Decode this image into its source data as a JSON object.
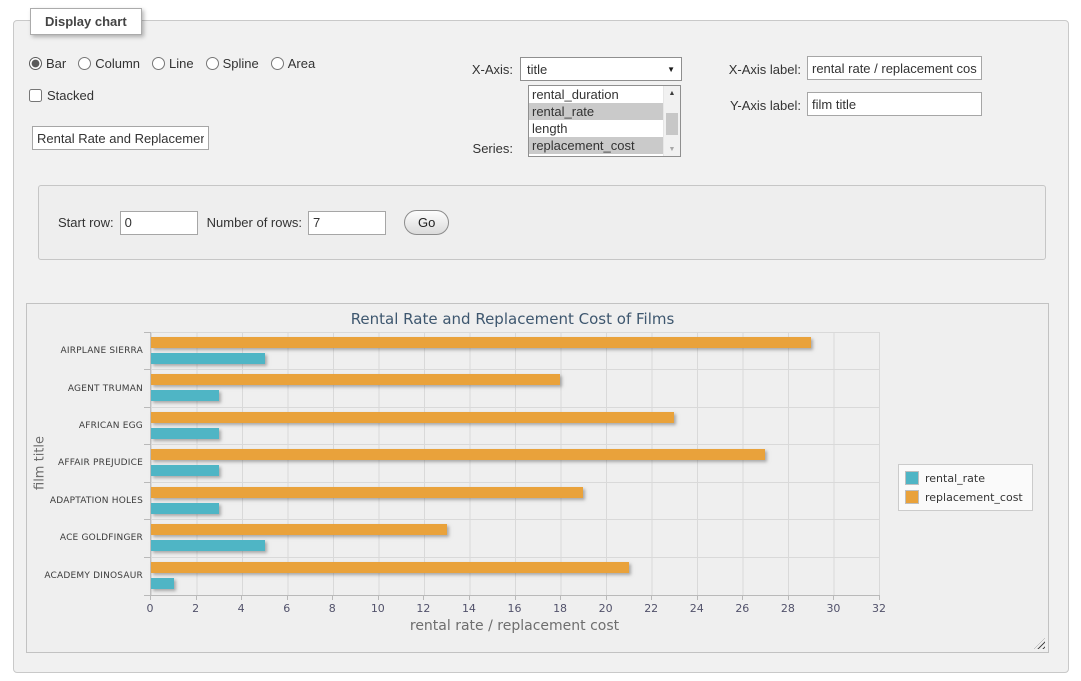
{
  "fieldset": {
    "legend": "Display chart"
  },
  "controls": {
    "chart_types": [
      "Bar",
      "Column",
      "Line",
      "Spline",
      "Area"
    ],
    "selected_chart_type": "Bar",
    "stacked_label": "Stacked",
    "stacked_checked": false,
    "chart_title_value": "Rental Rate and Replacement Cost of Films",
    "x_axis": {
      "label": "X-Axis:",
      "value": "title"
    },
    "series": {
      "label": "Series:",
      "options": [
        "rental_duration",
        "rental_rate",
        "length",
        "replacement_cost"
      ],
      "selected": [
        "rental_rate",
        "replacement_cost"
      ]
    },
    "x_axis_label": {
      "label": "X-Axis label:",
      "value": "rental rate / replacement cost"
    },
    "y_axis_label": {
      "label": "Y-Axis label:",
      "value": "film title"
    }
  },
  "rows_panel": {
    "start_row_label": "Start row:",
    "start_row_value": "0",
    "num_rows_label": "Number of rows:",
    "num_rows_value": "7",
    "go_label": "Go"
  },
  "icons": {
    "dropdown_arrow": "▼",
    "scroll_up_arrow": "▲",
    "scroll_down_arrow": "▼"
  },
  "chart_data": {
    "type": "bar",
    "orientation": "horizontal",
    "title": "Rental Rate and Replacement Cost of Films",
    "xlabel": "rental rate / replacement cost",
    "ylabel": "film title",
    "xlim": [
      0,
      32
    ],
    "xticks": [
      0,
      2,
      4,
      6,
      8,
      10,
      12,
      14,
      16,
      18,
      20,
      22,
      24,
      26,
      28,
      30,
      32
    ],
    "grid": true,
    "legend_position": "right",
    "background_color": "#EFEFEF",
    "categories": [
      "AIRPLANE SIERRA",
      "AGENT TRUMAN",
      "AFRICAN EGG",
      "AFFAIR PREJUDICE",
      "ADAPTATION HOLES",
      "ACE GOLDFINGER",
      "ACADEMY DINOSAUR"
    ],
    "series": [
      {
        "name": "rental_rate",
        "color": "#4FB5C5",
        "values": [
          4.99,
          2.99,
          2.99,
          2.99,
          2.99,
          4.99,
          0.99
        ]
      },
      {
        "name": "replacement_cost",
        "color": "#E9A23B",
        "values": [
          28.99,
          17.99,
          22.99,
          26.99,
          18.99,
          12.99,
          20.99
        ]
      }
    ],
    "bar_draw_order": [
      "replacement_cost",
      "rental_rate"
    ]
  }
}
